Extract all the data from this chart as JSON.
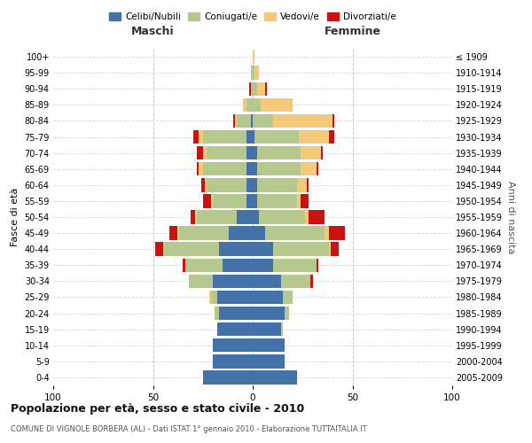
{
  "age_groups": [
    "0-4",
    "5-9",
    "10-14",
    "15-19",
    "20-24",
    "25-29",
    "30-34",
    "35-39",
    "40-44",
    "45-49",
    "50-54",
    "55-59",
    "60-64",
    "65-69",
    "70-74",
    "75-79",
    "80-84",
    "85-89",
    "90-94",
    "95-99",
    "100+"
  ],
  "birth_years": [
    "2005-2009",
    "2000-2004",
    "1995-1999",
    "1990-1994",
    "1985-1989",
    "1980-1984",
    "1975-1979",
    "1970-1974",
    "1965-1969",
    "1960-1964",
    "1955-1959",
    "1950-1954",
    "1945-1949",
    "1940-1944",
    "1935-1939",
    "1930-1934",
    "1925-1929",
    "1920-1924",
    "1915-1919",
    "1910-1914",
    "≤ 1909"
  ],
  "colors": {
    "celibi": "#4472a8",
    "coniugati": "#b5c98e",
    "vedovi": "#f5c97a",
    "divorziati": "#cc1111"
  },
  "maschi": {
    "celibi": [
      25,
      20,
      20,
      18,
      17,
      18,
      20,
      15,
      17,
      12,
      8,
      3,
      3,
      3,
      3,
      3,
      1,
      0,
      0,
      0,
      0
    ],
    "coniugati": [
      0,
      0,
      0,
      0,
      2,
      3,
      12,
      19,
      28,
      25,
      20,
      17,
      20,
      22,
      20,
      22,
      7,
      3,
      1,
      1,
      0
    ],
    "vedovi": [
      0,
      0,
      0,
      0,
      0,
      1,
      0,
      0,
      0,
      1,
      1,
      1,
      1,
      2,
      2,
      2,
      1,
      2,
      0,
      0,
      0
    ],
    "divorziati": [
      0,
      0,
      0,
      0,
      0,
      0,
      0,
      1,
      4,
      4,
      2,
      4,
      2,
      1,
      3,
      3,
      1,
      0,
      1,
      0,
      0
    ]
  },
  "femmine": {
    "celibi": [
      22,
      16,
      16,
      14,
      16,
      15,
      14,
      10,
      10,
      6,
      3,
      2,
      2,
      2,
      2,
      1,
      0,
      0,
      0,
      0,
      0
    ],
    "coniugati": [
      0,
      0,
      0,
      1,
      2,
      5,
      15,
      22,
      28,
      30,
      23,
      20,
      20,
      22,
      22,
      22,
      10,
      4,
      2,
      1,
      0
    ],
    "vedovi": [
      0,
      0,
      0,
      0,
      0,
      0,
      0,
      0,
      1,
      2,
      2,
      2,
      5,
      8,
      10,
      15,
      30,
      16,
      4,
      2,
      1
    ],
    "divorziati": [
      0,
      0,
      0,
      0,
      0,
      0,
      1,
      1,
      4,
      8,
      8,
      4,
      1,
      1,
      1,
      3,
      1,
      0,
      1,
      0,
      0
    ]
  },
  "title": "Popolazione per età, sesso e stato civile - 2010",
  "subtitle": "COMUNE DI VIGNOLE BORBERA (AL) - Dati ISTAT 1° gennaio 2010 - Elaborazione TUTTAITALIA.IT",
  "xlabel_left": "Maschi",
  "xlabel_right": "Femmine",
  "ylabel_left": "Fasce di età",
  "ylabel_right": "Anni di nascita",
  "xlim": 100,
  "legend_labels": [
    "Celibi/Nubili",
    "Coniugati/e",
    "Vedovi/e",
    "Divorziati/e"
  ],
  "bg_color": "#ffffff",
  "grid_color": "#cccccc",
  "bar_height": 0.85
}
